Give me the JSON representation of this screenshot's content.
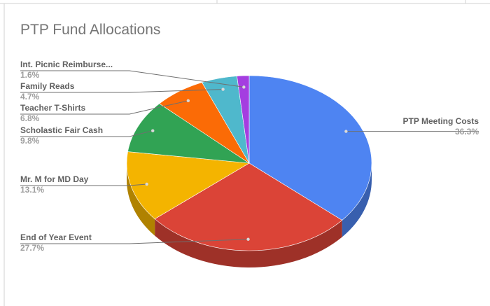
{
  "chart_data": {
    "type": "pie",
    "title": "PTP Fund Allocations",
    "slices": [
      {
        "label": "PTP Meeting Costs",
        "value": 36.3,
        "pct_label": "36.3%",
        "color": "#4e84f2"
      },
      {
        "label": "End of Year Event",
        "value": 27.7,
        "pct_label": "27.7%",
        "color": "#db4437"
      },
      {
        "label": "Mr. M for MD Day",
        "value": 13.1,
        "pct_label": "13.1%",
        "color": "#f4b400"
      },
      {
        "label": "Scholastic Fair Cash",
        "value": 9.8,
        "pct_label": "9.8%",
        "color": "#31a354"
      },
      {
        "label": "Teacher T-Shirts",
        "value": 6.8,
        "pct_label": "6.8%",
        "color": "#fb6b06"
      },
      {
        "label": "Family Reads",
        "value": 4.7,
        "pct_label": "4.7%",
        "color": "#4fb8cc"
      },
      {
        "label": "Int. Picnic Reimburse...",
        "value": 1.6,
        "pct_label": "1.6%",
        "color": "#a43ee0"
      }
    ],
    "style": "3d"
  }
}
